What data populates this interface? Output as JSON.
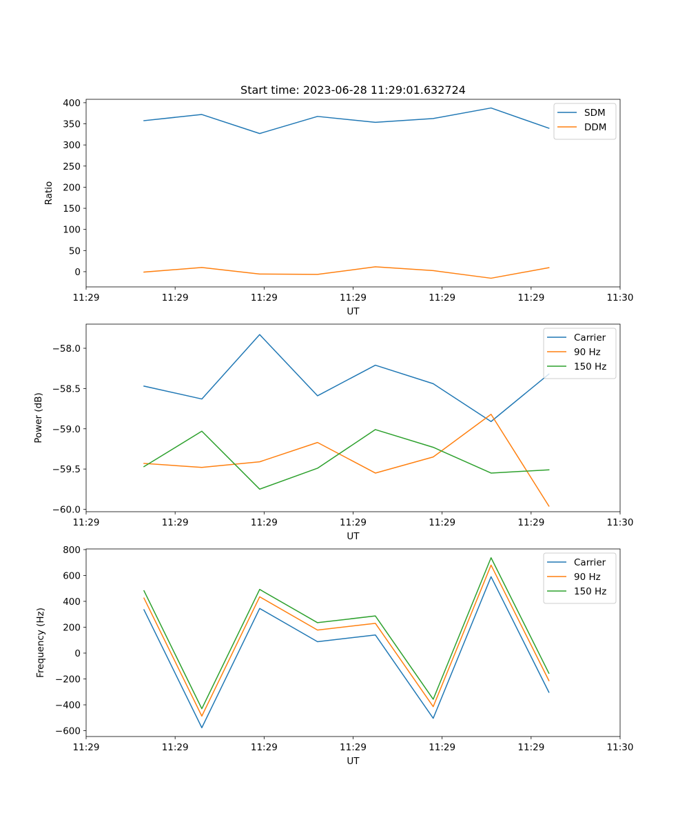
{
  "chart_data": [
    {
      "type": "line",
      "title": "Start time: 2023-06-28 11:29:01.632724",
      "xlabel": "UT",
      "ylabel": "Ratio",
      "x": [
        0.65,
        1.3,
        1.95,
        2.6,
        3.25,
        3.9,
        4.55,
        5.2
      ],
      "xlim": [
        0.0,
        6.0
      ],
      "xticks": [
        0.0,
        1.0,
        2.0,
        3.0,
        4.0,
        5.0,
        6.0
      ],
      "xtick_labels": [
        "11:29",
        "11:29",
        "11:29",
        "11:29",
        "11:29",
        "11:29",
        "11:30"
      ],
      "ylim": [
        -36,
        408
      ],
      "yticks": [
        0,
        50,
        100,
        150,
        200,
        250,
        300,
        350,
        400
      ],
      "ytick_labels": [
        "0",
        "50",
        "100",
        "150",
        "200",
        "250",
        "300",
        "350",
        "400"
      ],
      "legend_position": "upper right",
      "series": [
        {
          "name": "SDM",
          "color": "#1f77b4",
          "values": [
            357.5,
            372,
            327,
            367.5,
            353.5,
            362.5,
            387.5,
            339.5
          ]
        },
        {
          "name": "DDM",
          "color": "#ff7f0e",
          "values": [
            -1,
            10,
            -5.5,
            -6.5,
            11.5,
            2.5,
            -15.5,
            9.5
          ]
        }
      ]
    },
    {
      "type": "line",
      "xlabel": "UT",
      "ylabel": "Power (dB)",
      "x": [
        0.65,
        1.3,
        1.95,
        2.6,
        3.25,
        3.9,
        4.55,
        5.2
      ],
      "xlim": [
        0.0,
        6.0
      ],
      "xticks": [
        0.0,
        1.0,
        2.0,
        3.0,
        4.0,
        5.0,
        6.0
      ],
      "xtick_labels": [
        "11:29",
        "11:29",
        "11:29",
        "11:29",
        "11:29",
        "11:29",
        "11:30"
      ],
      "ylim": [
        -60.03,
        -57.7
      ],
      "yticks": [
        -60.0,
        -59.5,
        -59.0,
        -58.5,
        -58.0
      ],
      "ytick_labels": [
        "−60.0",
        "−59.5",
        "−59.0",
        "−58.5",
        "−58.0"
      ],
      "legend_position": "upper right",
      "series": [
        {
          "name": "Carrier",
          "color": "#1f77b4",
          "values": [
            -58.47,
            -58.63,
            -57.83,
            -58.59,
            -58.21,
            -58.44,
            -58.91,
            -58.32
          ]
        },
        {
          "name": "90 Hz",
          "color": "#ff7f0e",
          "values": [
            -59.43,
            -59.48,
            -59.41,
            -59.17,
            -59.55,
            -59.35,
            -58.82,
            -59.96
          ]
        },
        {
          "name": "150 Hz",
          "color": "#2ca02c",
          "values": [
            -59.47,
            -59.03,
            -59.75,
            -59.49,
            -59.01,
            -59.23,
            -59.55,
            -59.51
          ]
        }
      ]
    },
    {
      "type": "line",
      "xlabel": "UT",
      "ylabel": "Frequency (Hz)",
      "x": [
        0.65,
        1.3,
        1.95,
        2.6,
        3.25,
        3.9,
        4.55,
        5.2
      ],
      "xlim": [
        0.0,
        6.0
      ],
      "xticks": [
        0.0,
        1.0,
        2.0,
        3.0,
        4.0,
        5.0,
        6.0
      ],
      "xtick_labels": [
        "11:29",
        "11:29",
        "11:29",
        "11:29",
        "11:29",
        "11:29",
        "11:30"
      ],
      "ylim": [
        -645,
        805
      ],
      "yticks": [
        -600,
        -400,
        -200,
        0,
        200,
        400,
        600,
        800
      ],
      "ytick_labels": [
        "−600",
        "−400",
        "−200",
        "0",
        "200",
        "400",
        "600",
        "800"
      ],
      "legend_position": "upper right",
      "series": [
        {
          "name": "Carrier",
          "color": "#1f77b4",
          "values": [
            335,
            -577,
            345,
            88,
            140,
            -504,
            590,
            -303
          ]
        },
        {
          "name": "90 Hz",
          "color": "#ff7f0e",
          "values": [
            425,
            -487,
            435,
            178,
            230,
            -414,
            680,
            -213
          ]
        },
        {
          "name": "150 Hz",
          "color": "#2ca02c",
          "values": [
            482,
            -430,
            492,
            235,
            287,
            -357,
            737,
            -156
          ]
        }
      ]
    }
  ]
}
